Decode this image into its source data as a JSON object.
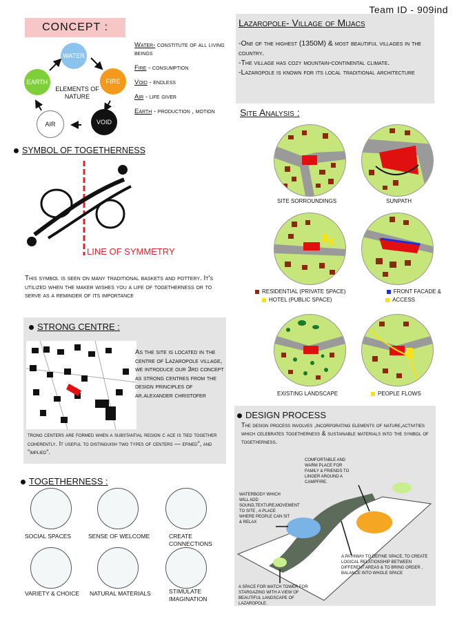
{
  "team_id": "Team ID - 909ind",
  "concept": {
    "title": "CONCEPT :",
    "center_label": "ELEMENTS OF NATURE",
    "nodes": [
      {
        "name": "WATER",
        "color": "#7fb8ea"
      },
      {
        "name": "FIRE",
        "color": "#f39a1c"
      },
      {
        "name": "VOID",
        "color": "#111111"
      },
      {
        "name": "AIR",
        "color": "#ffffff"
      },
      {
        "name": "EARTH",
        "color": "#7fcf3a"
      }
    ],
    "definitions": [
      {
        "term": "Water-",
        "desc": " constitute of all living beings"
      },
      {
        "term": "Fire",
        "desc": " - consumption"
      },
      {
        "term": "Void",
        "desc": " - endless"
      },
      {
        "term": "Air",
        "desc": " - life giver"
      },
      {
        "term": "Earth",
        "desc": " - production , motion"
      }
    ]
  },
  "intro": {
    "title": "Lazaropole- Village of Mijacs",
    "lines": [
      "-One of the highest (1350M) & most beautiful villages in the country.",
      "-The village has cozy mountain-continental climate.",
      "-Lazaropole is known for its local traditional architecture"
    ]
  },
  "symbol": {
    "heading": "SYMBOL OF TOGETHERNESS",
    "line_label": "LINE OF SYMMETRY",
    "description": "This symbol is seen on many traditional baskets and pottery. It's utilized when the maker wishes you a life of togetherness or to serve as a reminder of its importance"
  },
  "site_analysis": {
    "heading": "Site Analysis :",
    "maps": [
      "SITE SORROUNDINGS",
      "SUNPATH",
      "EXISTING LANDSCAPE",
      "PEOPLE FLOWS"
    ],
    "legend": [
      {
        "label": "RESIDENTIAL (PRIVATE SPACE)",
        "color": "#8b2b0e"
      },
      {
        "label": "FRONT FACADE &",
        "color": "#1e2fd6"
      },
      {
        "label": "HOTEL (PUBLIC SPACE)",
        "color": "#f2e31b"
      },
      {
        "label": "ACCESS",
        "color": "#f2e31b"
      }
    ]
  },
  "strong_centre": {
    "heading": "STRONG CENTRE :",
    "text_side": "As the site is located in the centre of Lazaropole village, we introduce our 3rd concept as strong centres from the design principles of ar.alexander christofer",
    "text_bottom": "trong centers are formed when a substantial region c ace is tied together coherently. It useful to distinguish two types of centers — efined\", and \"implied\"."
  },
  "togetherness": {
    "heading": "TOGETHERNESS :",
    "items": [
      "SOCIAL SPACES",
      "SENSE OF WELCOME",
      "CREATE CONNECTIONS",
      "VARIETY & CHOICE",
      "NATURAL MATERIALS",
      "STIMULATE IMAGINATION"
    ]
  },
  "design_process": {
    "heading": "DESIGN PROCESS",
    "description": "The design process involves ,incorporating elements of nature,activities which celebrates togetherness & sustainable materials into the symbol of togetherness.",
    "notes": [
      "COMFORTABLE AND WARM PLACE FOR FAMILY & FRIENDS TO LINGER AROUND A CAMPFIRE.",
      "WATERBODY WHICH WILL ADD SOUND,TEXTURE,MOVEMENT TO SITE , A PLACE WHERE PEOPLE CAN SIT & RELAX",
      "A PATHWAY TO DEFINE SPACE, TO CREATE LOGICAL RELATIONSHIP BETWEEN DIFFERENT AREAS & TO BRING ORDER , BALANCE INTO WHOLE SPACE",
      "A SPACE FOR WATCH TOWER FOR STARGAZING WITH A VIEW OF BEAUTIFUL LANDSCAPE OF LAZAROPOLE."
    ]
  }
}
